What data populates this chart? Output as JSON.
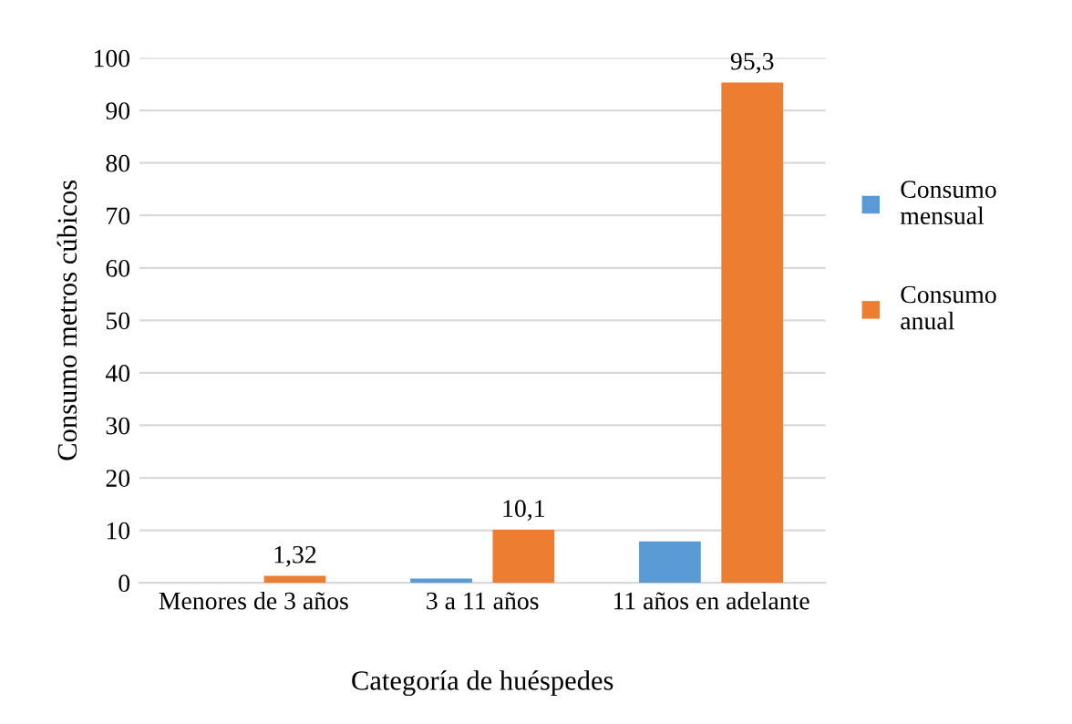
{
  "chart_data": {
    "type": "bar",
    "xlabel": "Categoría de huéspedes",
    "ylabel": "Consumo metros cúbicos",
    "categories": [
      "Menores de 3 años",
      "3 a 11 años",
      "11 años en adelante"
    ],
    "series": [
      {
        "name": "Consumo mensual",
        "color": "#5b9bd5",
        "values": [
          null,
          0.8,
          7.9
        ]
      },
      {
        "name": "Consumo anual",
        "color": "#ed7d31",
        "values": [
          1.32,
          10.1,
          95.3
        ],
        "value_labels": [
          "1,32",
          "10,1",
          "95,3"
        ]
      }
    ],
    "ylim": [
      0,
      100
    ],
    "yticks": [
      0,
      10,
      20,
      30,
      40,
      50,
      60,
      70,
      80,
      90,
      100
    ],
    "grid": "y",
    "legend": "right"
  }
}
